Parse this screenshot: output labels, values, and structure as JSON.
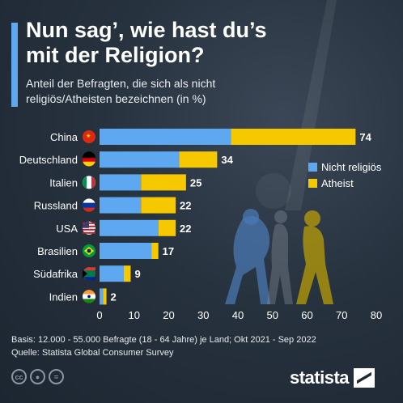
{
  "title": "Nun sag’, wie hast du’s mit der Religion?",
  "subtitle": "Anteil der Befragten, die sich als nicht religiös/Atheisten bezeichnen (in %)",
  "footer": {
    "basis": "Basis: 12.000 - 55.000 Befragte (18 - 64 Jahre) je Land; Okt 2021 - Sep 2022",
    "source": "Quelle: Statista Global Consumer Survey"
  },
  "brand": "statista",
  "icons": [
    "cc-icon",
    "person-icon",
    "equals-icon"
  ],
  "colors": {
    "nicht_religioes": "#5ea8f2",
    "atheist": "#f5c800",
    "background": "#1f2a36"
  },
  "chart_data": {
    "type": "bar",
    "orientation": "horizontal",
    "stacked": true,
    "categories": [
      "China",
      "Deutschland",
      "Italien",
      "Russland",
      "USA",
      "Brasilien",
      "Südafrika",
      "Indien"
    ],
    "flags": [
      "china-flag-icon",
      "germany-flag-icon",
      "italy-flag-icon",
      "russia-flag-icon",
      "usa-flag-icon",
      "brazil-flag-icon",
      "south-africa-flag-icon",
      "india-flag-icon"
    ],
    "series": [
      {
        "name": "Nicht religiös",
        "values": [
          38,
          23,
          12,
          12,
          17,
          15,
          7,
          1
        ],
        "color": "#5ea8f2"
      },
      {
        "name": "Atheist",
        "values": [
          36,
          11,
          13,
          10,
          5,
          2,
          2,
          1
        ],
        "color": "#f5c800"
      }
    ],
    "totals": [
      74,
      34,
      25,
      22,
      22,
      17,
      9,
      2
    ],
    "xlim": [
      0,
      80
    ],
    "xticks": [
      0,
      10,
      20,
      30,
      40,
      50,
      60,
      70,
      80
    ],
    "legend_position": "right",
    "grid": false
  }
}
